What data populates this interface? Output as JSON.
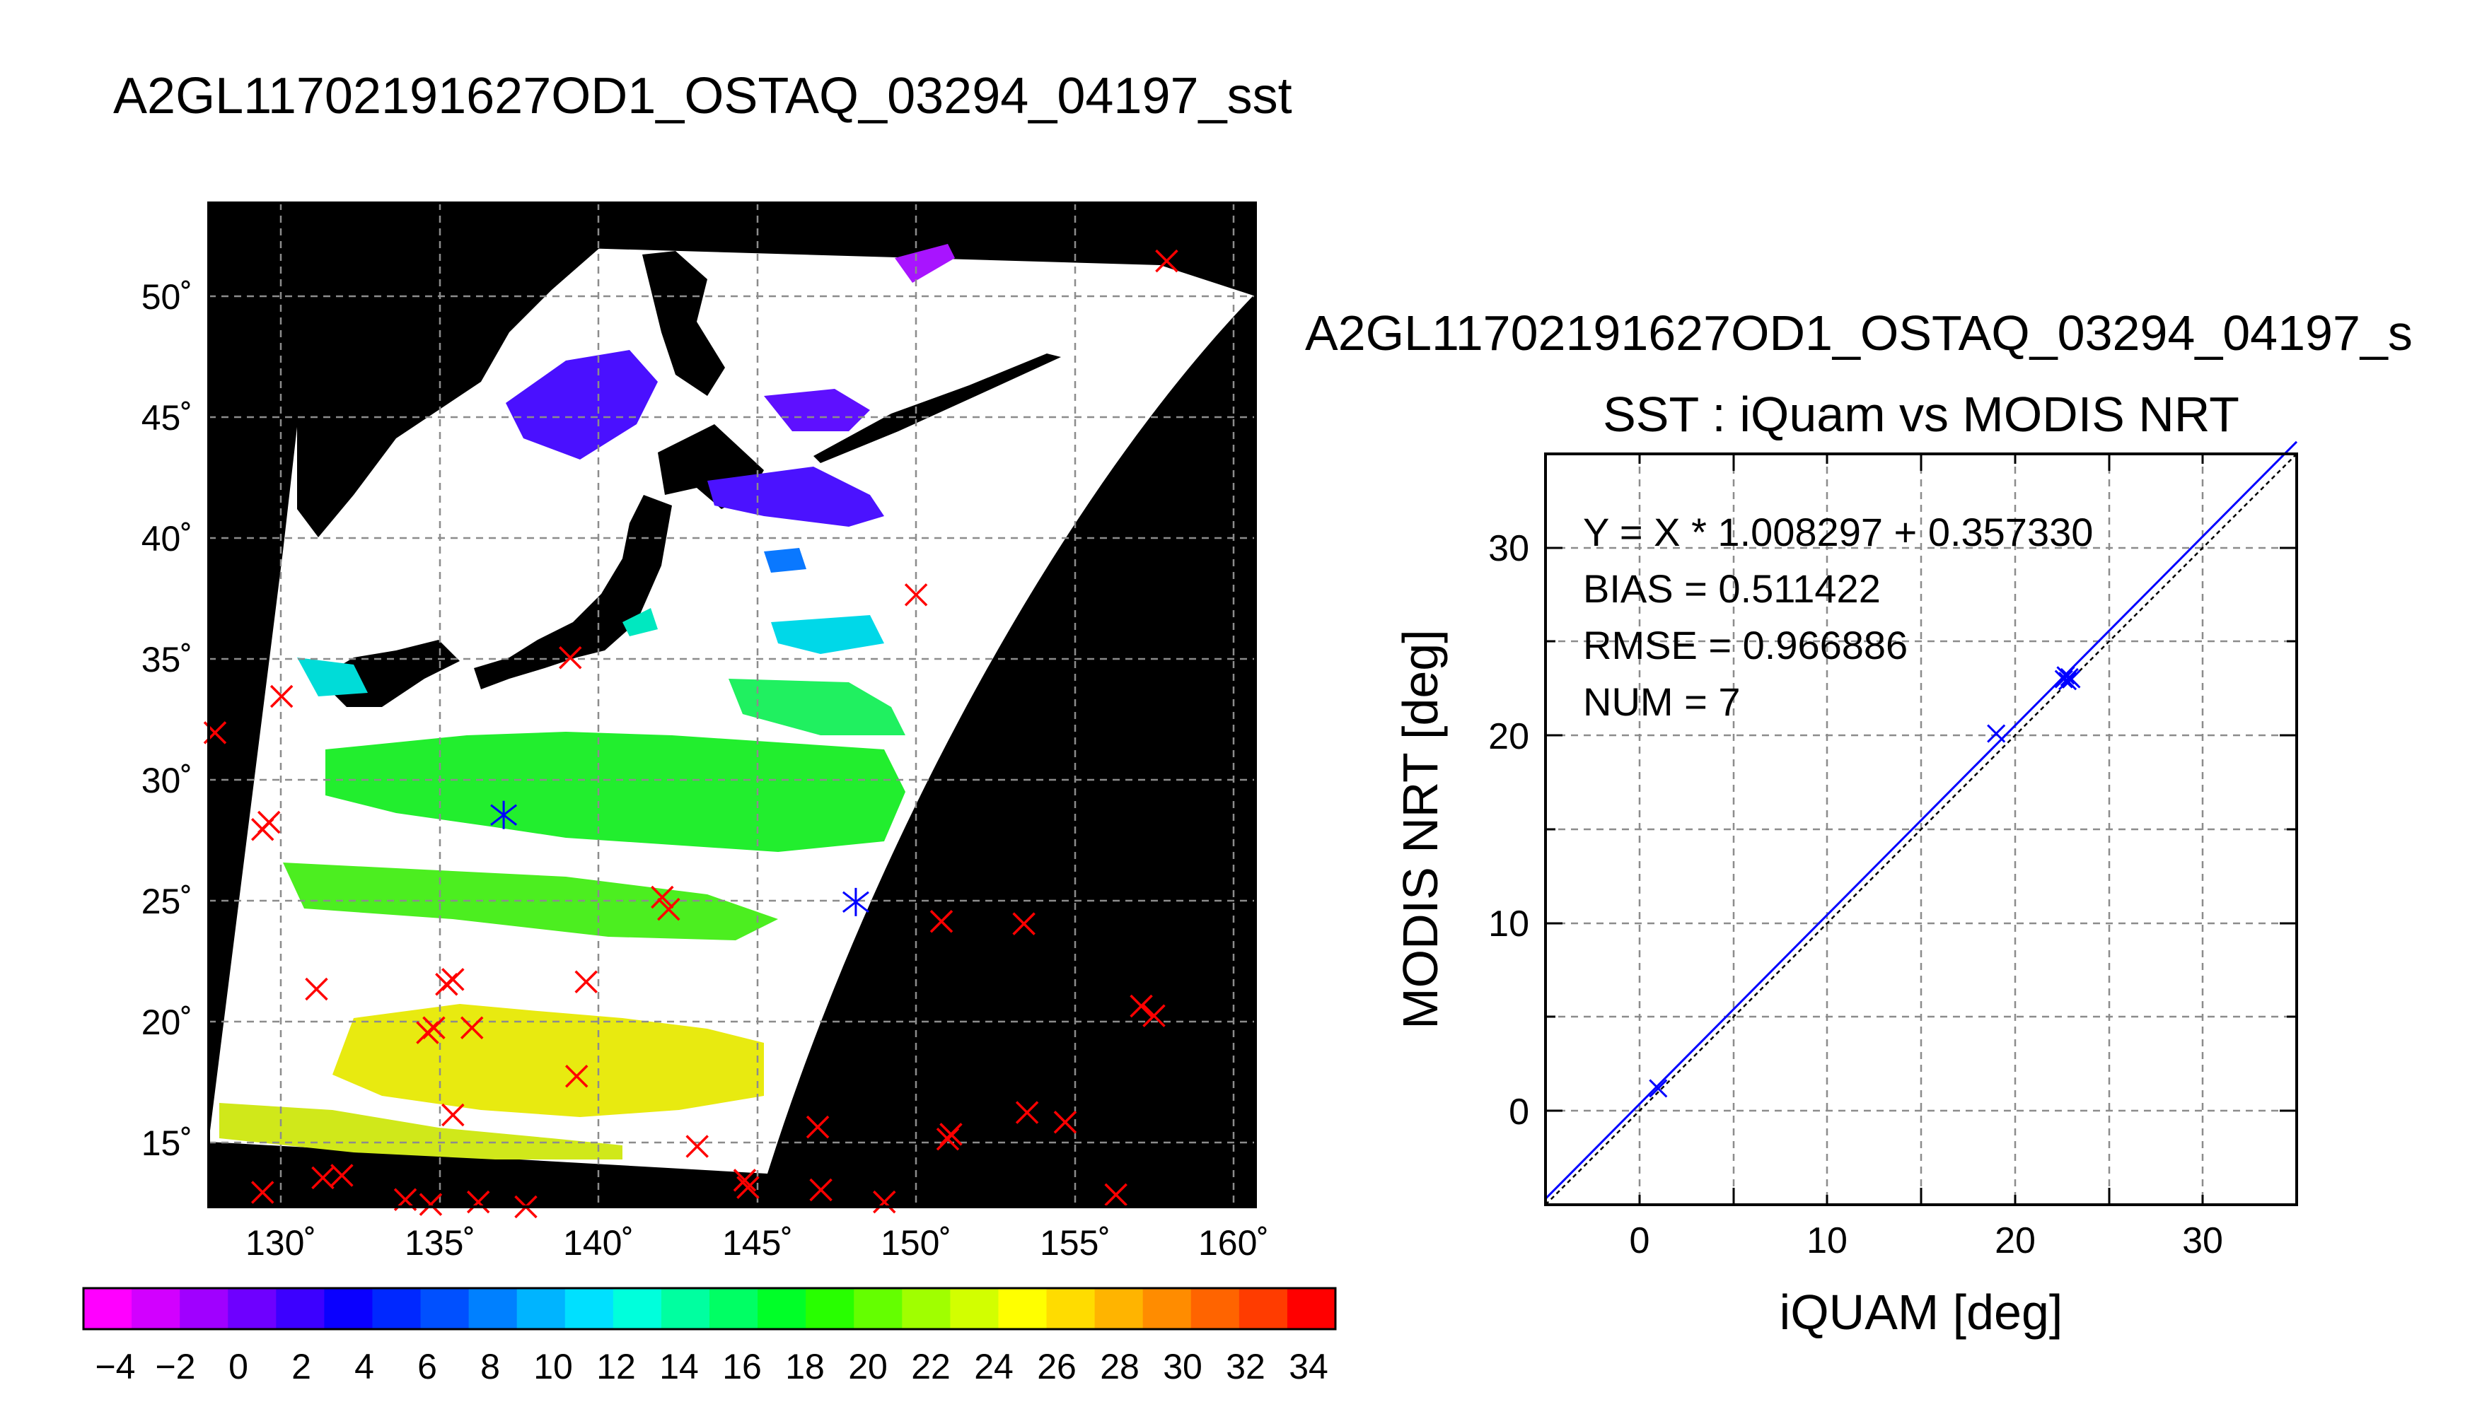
{
  "page_title": "A2GL11702191627OD1_OSTAQ_03294_04197_sst",
  "map": {
    "lon_ticks": [
      "130˚",
      "135˚",
      "140˚",
      "145˚",
      "150˚",
      "155˚",
      "160˚"
    ],
    "lat_ticks": [
      "15˚",
      "20˚",
      "25˚",
      "30˚",
      "35˚",
      "40˚",
      "45˚",
      "50˚"
    ]
  },
  "colorbar": {
    "labels": [
      "−4",
      "−2",
      "0",
      "2",
      "4",
      "6",
      "8",
      "10",
      "12",
      "14",
      "16",
      "18",
      "20",
      "22",
      "24",
      "26",
      "28",
      "30",
      "32",
      "34"
    ],
    "colors": [
      "#ff00ff",
      "#d200ff",
      "#a000ff",
      "#6e00ff",
      "#3c00ff",
      "#0a00ff",
      "#0028ff",
      "#0050ff",
      "#0080ff",
      "#00b4ff",
      "#00e0ff",
      "#00ffdc",
      "#00ffa0",
      "#00ff64",
      "#00ff28",
      "#28ff00",
      "#64ff00",
      "#a0ff00",
      "#d2ff00",
      "#ffff00",
      "#ffdc00",
      "#ffb400",
      "#ff8c00",
      "#ff6400",
      "#ff3c00",
      "#ff0000"
    ]
  },
  "scatter": {
    "super_title": "A2GL11702191627OD1_OSTAQ_03294_04197_s",
    "title": "SST : iQuam vs MODIS NRT",
    "equation": "Y = X * 1.008297 + 0.357330",
    "bias": "BIAS = 0.511422",
    "rmse": "RMSE = 0.966886",
    "num": "NUM = 7",
    "xlabel": "iQUAM [deg]",
    "ylabel": "MODIS NRT [deg]"
  },
  "chart_data": [
    {
      "type": "scatter",
      "title": "A2GL11702191627OD1_OSTAQ_03294_04197_sst",
      "xlim": [
        128,
        161
      ],
      "ylim": [
        12.5,
        54
      ],
      "x_ticks": [
        130,
        135,
        140,
        145,
        150,
        155,
        160
      ],
      "y_ticks": [
        15,
        20,
        25,
        30,
        35,
        40,
        45,
        50
      ],
      "grid": true,
      "series": [
        {
          "marker": "x",
          "color": "#ff0000",
          "points": [
            [
              158.2,
              51.6
            ],
            [
              150.3,
              37.8
            ],
            [
              139.4,
              35.2
            ],
            [
              130.3,
              33.6
            ],
            [
              128.2,
              32.1
            ],
            [
              129.9,
              28.4
            ],
            [
              129.7,
              28.1
            ],
            [
              142.3,
              25.3
            ],
            [
              142.5,
              24.8
            ],
            [
              151.1,
              24.3
            ],
            [
              153.7,
              24.2
            ],
            [
              131.4,
              21.5
            ],
            [
              135.7,
              21.9
            ],
            [
              135.5,
              21.7
            ],
            [
              139.9,
              21.8
            ],
            [
              157.4,
              20.8
            ],
            [
              157.8,
              20.4
            ],
            [
              135.1,
              19.9
            ],
            [
              136.3,
              19.9
            ],
            [
              134.9,
              19.7
            ],
            [
              139.6,
              17.9
            ],
            [
              135.7,
              16.3
            ],
            [
              153.8,
              16.4
            ],
            [
              155.0,
              16.0
            ],
            [
              147.2,
              15.8
            ],
            [
              151.4,
              15.5
            ],
            [
              151.3,
              15.3
            ],
            [
              143.4,
              15.0
            ],
            [
              131.6,
              13.7
            ],
            [
              132.2,
              13.8
            ],
            [
              144.9,
              13.6
            ],
            [
              145.0,
              13.3
            ],
            [
              147.3,
              13.2
            ],
            [
              129.7,
              13.1
            ],
            [
              156.6,
              13.0
            ],
            [
              134.2,
              12.8
            ],
            [
              135.0,
              12.6
            ],
            [
              136.5,
              12.7
            ],
            [
              138.0,
              12.5
            ],
            [
              149.3,
              12.7
            ]
          ]
        },
        {
          "marker": "x",
          "color": "#0000ff",
          "points": [
            [
              137.3,
              28.7
            ],
            [
              148.4,
              25.1
            ]
          ]
        }
      ]
    },
    {
      "type": "scatter",
      "title": "SST : iQuam vs MODIS NRT",
      "xlabel": "iQUAM [deg]",
      "ylabel": "MODIS NRT [deg]",
      "xlim": [
        -5,
        35
      ],
      "ylim": [
        -5,
        35
      ],
      "x_ticks": [
        0,
        10,
        20,
        30
      ],
      "y_ticks": [
        0,
        10,
        20,
        30
      ],
      "grid": true,
      "series": [
        {
          "marker": "x",
          "color": "#0000ff",
          "points": [
            [
              1.0,
              1.2
            ],
            [
              19.0,
              20.1
            ],
            [
              22.6,
              23.0
            ],
            [
              22.7,
              23.2
            ],
            [
              22.8,
              22.9
            ],
            [
              22.9,
              23.1
            ],
            [
              23.0,
              23.0
            ]
          ]
        }
      ],
      "fit": {
        "slope": 1.008297,
        "intercept": 0.35733
      },
      "reference_line": {
        "slope": 1,
        "intercept": 0
      }
    }
  ]
}
